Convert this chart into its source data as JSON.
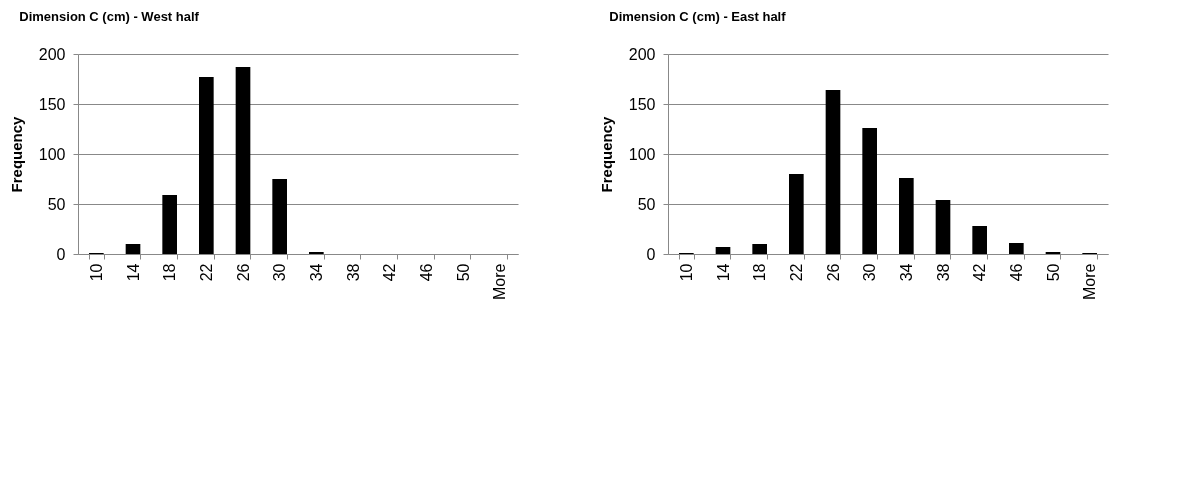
{
  "chart_data": [
    {
      "type": "bar",
      "title": "Dimension C (cm) - West half",
      "ylabel": "Frequency",
      "categories": [
        "10",
        "14",
        "18",
        "22",
        "26",
        "30",
        "34",
        "38",
        "42",
        "46",
        "50",
        "More"
      ],
      "values": [
        1,
        10,
        59,
        177,
        187,
        75,
        2,
        0,
        0,
        0,
        0,
        0
      ],
      "color": "#000000",
      "ylim": [
        0,
        200
      ],
      "yticks": [
        0,
        50,
        100,
        150,
        200
      ],
      "grid": "y"
    },
    {
      "type": "bar",
      "title": "Dimension C (cm) - East half",
      "ylabel": "Frequency",
      "categories": [
        "10",
        "14",
        "18",
        "22",
        "26",
        "30",
        "34",
        "38",
        "42",
        "46",
        "50",
        "More"
      ],
      "values": [
        1,
        7,
        10,
        80,
        164,
        126,
        76,
        54,
        28,
        11,
        2,
        1
      ],
      "color": "#000000",
      "ylim": [
        0,
        200
      ],
      "yticks": [
        0,
        50,
        100,
        150,
        200
      ],
      "grid": "y"
    }
  ]
}
